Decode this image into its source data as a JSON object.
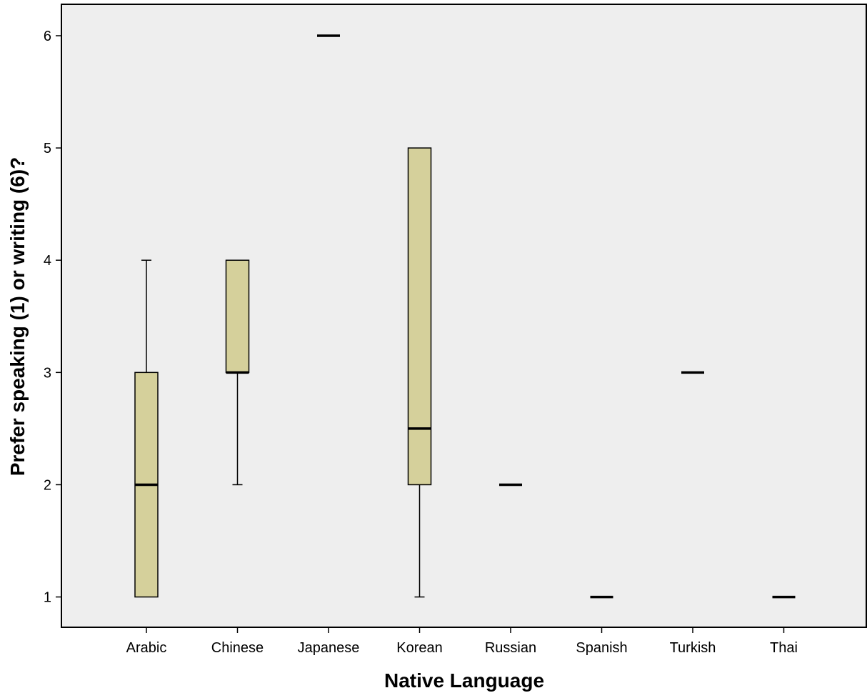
{
  "chart_data": {
    "type": "boxplot",
    "xlabel": "Native Language",
    "ylabel": "Prefer speaking (1) or writing (6)?",
    "yticks": [
      1,
      2,
      3,
      4,
      5,
      6
    ],
    "ylim": [
      0.73,
      6.28
    ],
    "grid": false,
    "categories": [
      "Arabic",
      "Chinese",
      "Japanese",
      "Korean",
      "Russian",
      "Spanish",
      "Turkish",
      "Thai"
    ],
    "boxes": [
      {
        "category": "Arabic",
        "min": 1,
        "q1": 1,
        "median": 2,
        "q3": 3,
        "max": 4
      },
      {
        "category": "Chinese",
        "min": 2,
        "q1": 3,
        "median": 3,
        "q3": 4,
        "max": 4
      },
      {
        "category": "Japanese",
        "min": 6,
        "q1": 6,
        "median": 6,
        "q3": 6,
        "max": 6
      },
      {
        "category": "Korean",
        "min": 1,
        "q1": 2,
        "median": 2.5,
        "q3": 5,
        "max": 5
      },
      {
        "category": "Russian",
        "min": 2,
        "q1": 2,
        "median": 2,
        "q3": 2,
        "max": 2
      },
      {
        "category": "Spanish",
        "min": 1,
        "q1": 1,
        "median": 1,
        "q3": 1,
        "max": 1
      },
      {
        "category": "Turkish",
        "min": 3,
        "q1": 3,
        "median": 3,
        "q3": 3,
        "max": 3
      },
      {
        "category": "Thai",
        "min": 1,
        "q1": 1,
        "median": 1,
        "q3": 1,
        "max": 1
      }
    ],
    "colors": {
      "box_fill": "#d5d09b",
      "plot_background": "#eeeeee",
      "line": "#000000"
    }
  }
}
